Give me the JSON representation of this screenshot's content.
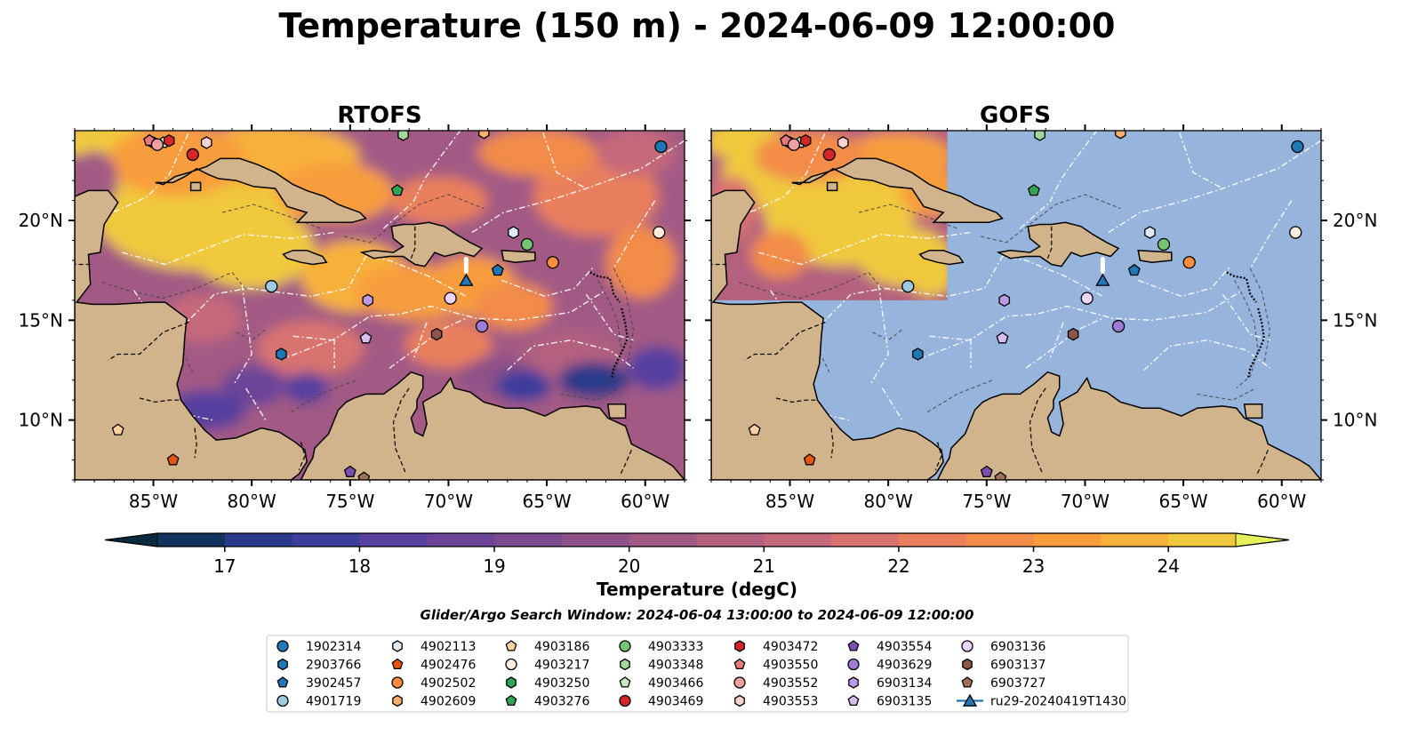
{
  "figure": {
    "title": "Temperature (150 m) - 2024-06-09 12:00:00",
    "search_window": "Glider/Argo Search Window: 2024-06-04 13:00:00 to 2024-06-09 12:00:00"
  },
  "chart_data": [
    {
      "type": "heatmap",
      "title": "RTOFS",
      "xlim": [
        -89,
        -58
      ],
      "ylim": [
        7,
        24.5
      ],
      "xticks": [
        -85,
        -80,
        -75,
        -70,
        -65,
        -60
      ],
      "xtick_labels": [
        "85°W",
        "80°W",
        "75°W",
        "70°W",
        "65°W",
        "60°W"
      ],
      "yticks": [
        10,
        15,
        20
      ],
      "ytick_labels": [
        "10°N",
        "15°N",
        "20°N"
      ],
      "ytick_side": "left",
      "model_coverage": "full"
    },
    {
      "type": "heatmap",
      "title": "GOFS",
      "xlim": [
        -89,
        -58
      ],
      "ylim": [
        7,
        24.5
      ],
      "xticks": [
        -85,
        -80,
        -75,
        -70,
        -65,
        -60
      ],
      "xtick_labels": [
        "85°W",
        "80°W",
        "75°W",
        "70°W",
        "65°W",
        "60°W"
      ],
      "yticks": [
        10,
        15,
        20
      ],
      "ytick_labels": [
        "10°N",
        "15°N",
        "20°N"
      ],
      "ytick_side": "right",
      "model_coverage": "partial",
      "model_extent": {
        "lon": [
          -89,
          -77
        ],
        "lat": [
          16,
          24.5
        ]
      }
    }
  ],
  "colorbar": {
    "label": "Temperature (degC)",
    "min": 16.5,
    "max": 24.5,
    "levels_step": 0.5,
    "ticks": [
      17,
      18,
      19,
      20,
      21,
      22,
      23,
      24
    ],
    "colors": [
      "#0b2a3f",
      "#12335d",
      "#2a3a8a",
      "#3d3d9c",
      "#57409f",
      "#6b4499",
      "#7c4a8f",
      "#8e5188",
      "#a25a84",
      "#b4617f",
      "#c6697a",
      "#d87370",
      "#e97f5b",
      "#f38c48",
      "#f89d3c",
      "#f7b13a",
      "#f0c93e",
      "#e6f05a"
    ]
  },
  "map_colors": {
    "land": "#d2b48c",
    "ocean": "#96b4dc",
    "coast": "#000000",
    "eez": "#ffffff",
    "bathy": "#444444"
  },
  "floats": [
    {
      "id": "1902314",
      "marker": "circle",
      "color": "#1f77b4",
      "lon": -59.2,
      "lat": 23.7
    },
    {
      "id": "2903766",
      "marker": "hexagon",
      "color": "#1f77b4",
      "lon": -78.5,
      "lat": 13.3
    },
    {
      "id": "3902457",
      "marker": "pentagon",
      "color": "#1f77b4",
      "lon": -67.5,
      "lat": 17.5
    },
    {
      "id": "4901719",
      "marker": "circle",
      "color": "#9ecae1",
      "lon": -79.0,
      "lat": 16.7
    },
    {
      "id": "4902113",
      "marker": "hexagon",
      "color": "#deebf7",
      "lon": -66.7,
      "lat": 19.4
    },
    {
      "id": "4902476",
      "marker": "pentagon",
      "color": "#e6550d",
      "lon": -84.0,
      "lat": 8.0
    },
    {
      "id": "4902502",
      "marker": "circle",
      "color": "#fd8d3c",
      "lon": -64.7,
      "lat": 17.9
    },
    {
      "id": "4902609",
      "marker": "hexagon",
      "color": "#fdae6b",
      "lon": -68.2,
      "lat": 24.4
    },
    {
      "id": "4903186",
      "marker": "pentagon",
      "color": "#fdd0a2",
      "lon": -86.8,
      "lat": 9.5
    },
    {
      "id": "4903217",
      "marker": "circle",
      "color": "#feedde",
      "lon": -59.3,
      "lat": 19.4
    },
    {
      "id": "4903250",
      "marker": "hexagon",
      "color": "#31a354",
      "lon": -85.0,
      "lat": 23.9
    },
    {
      "id": "4903276",
      "marker": "pentagon",
      "color": "#31a354",
      "lon": -72.6,
      "lat": 21.5
    },
    {
      "id": "4903333",
      "marker": "circle",
      "color": "#74c476",
      "lon": -66.0,
      "lat": 18.8
    },
    {
      "id": "4903348",
      "marker": "hexagon",
      "color": "#a1d99b",
      "lon": -72.3,
      "lat": 24.3
    },
    {
      "id": "4903466",
      "marker": "pentagon",
      "color": "#c7e9c0",
      "lon": -84.5,
      "lat": 23.9
    },
    {
      "id": "4903469",
      "marker": "circle",
      "color": "#d62728",
      "lon": -83.0,
      "lat": 23.3
    },
    {
      "id": "4903472",
      "marker": "hexagon",
      "color": "#d62728",
      "lon": -84.2,
      "lat": 24.0
    },
    {
      "id": "4903550",
      "marker": "pentagon",
      "color": "#e7787e",
      "lon": -85.2,
      "lat": 24.0
    },
    {
      "id": "4903552",
      "marker": "circle",
      "color": "#f0a0a0",
      "lon": -84.8,
      "lat": 23.8
    },
    {
      "id": "4903553",
      "marker": "hexagon",
      "color": "#fcd2d2",
      "lon": -82.3,
      "lat": 23.9
    },
    {
      "id": "4903554",
      "marker": "pentagon",
      "color": "#7b4fb0",
      "lon": -75.0,
      "lat": 7.4
    },
    {
      "id": "4903629",
      "marker": "circle",
      "color": "#9e7bd6",
      "lon": -68.3,
      "lat": 14.7
    },
    {
      "id": "6903134",
      "marker": "hexagon",
      "color": "#bc9be3",
      "lon": -74.1,
      "lat": 16.0
    },
    {
      "id": "6903135",
      "marker": "pentagon",
      "color": "#d4bff0",
      "lon": -74.2,
      "lat": 14.1
    },
    {
      "id": "6903136",
      "marker": "circle",
      "color": "#edd5fa",
      "lon": -69.9,
      "lat": 16.1
    },
    {
      "id": "6903137",
      "marker": "hexagon",
      "color": "#8c564b",
      "lon": -70.6,
      "lat": 14.3
    },
    {
      "id": "6903727",
      "marker": "pentagon",
      "color": "#a0705c",
      "lon": -74.3,
      "lat": 7.1
    },
    {
      "id": "ru29-20240419T1430",
      "marker": "triangle",
      "color": "#1f77b4",
      "lon": -69.1,
      "lat": 17.0
    }
  ]
}
